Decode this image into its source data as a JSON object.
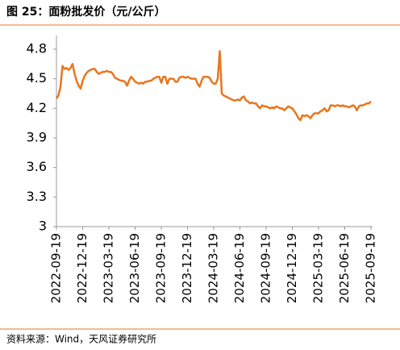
{
  "chart_data": {
    "type": "line",
    "title": "图 25：面粉批发价（元/公斤）",
    "source": "资料来源：Wind，天风证券研究所",
    "categories": [
      "2022-09-19",
      null,
      null,
      null,
      null,
      null,
      null,
      null,
      null,
      null,
      null,
      null,
      null,
      "2022-12-19",
      null,
      null,
      null,
      null,
      null,
      null,
      null,
      null,
      null,
      null,
      null,
      null,
      "2023-03-19",
      null,
      null,
      null,
      null,
      null,
      null,
      null,
      null,
      null,
      null,
      null,
      null,
      "2023-06-19",
      null,
      null,
      null,
      null,
      null,
      null,
      null,
      null,
      null,
      null,
      null,
      null,
      "2023-09-19",
      null,
      null,
      null,
      null,
      null,
      null,
      null,
      null,
      null,
      null,
      null,
      null,
      "2023-12-19",
      null,
      null,
      null,
      null,
      null,
      null,
      null,
      null,
      null,
      null,
      null,
      null,
      "2024-03-19",
      null,
      null,
      null,
      null,
      null,
      null,
      null,
      null,
      null,
      null,
      null,
      null,
      "2024-06-19",
      null,
      null,
      null,
      null,
      null,
      null,
      null,
      null,
      null,
      null,
      null,
      null,
      "2024-09-19",
      null,
      null,
      null,
      null,
      null,
      null,
      null,
      null,
      null,
      null,
      null,
      null,
      "2024-12-19",
      null,
      null,
      null,
      null,
      null,
      null,
      null,
      null,
      null,
      null,
      null,
      null,
      "2025-03-19",
      null,
      null,
      null,
      null,
      null,
      null,
      null,
      null,
      null,
      null,
      null,
      null,
      "2025-06-19",
      null,
      null,
      null,
      null,
      null,
      null,
      null,
      null,
      null,
      null,
      null,
      null,
      "2025-09-19"
    ],
    "values": [
      4.3,
      4.33,
      4.42,
      4.63,
      4.6,
      4.61,
      4.59,
      4.61,
      4.65,
      4.55,
      4.48,
      4.43,
      4.4,
      4.48,
      4.53,
      4.56,
      4.58,
      4.59,
      4.6,
      4.6,
      4.57,
      4.55,
      4.56,
      4.57,
      4.57,
      4.58,
      4.57,
      4.57,
      4.55,
      4.51,
      4.5,
      4.49,
      4.48,
      4.48,
      4.47,
      4.43,
      4.48,
      4.52,
      4.5,
      4.47,
      4.46,
      4.45,
      4.46,
      4.45,
      4.47,
      4.47,
      4.48,
      4.48,
      4.5,
      4.51,
      4.52,
      4.52,
      4.46,
      4.52,
      4.52,
      4.45,
      4.5,
      4.5,
      4.5,
      4.47,
      4.47,
      4.51,
      4.52,
      4.52,
      4.51,
      4.52,
      4.51,
      4.5,
      4.5,
      4.5,
      4.45,
      4.42,
      4.48,
      4.52,
      4.52,
      4.52,
      4.51,
      4.47,
      4.45,
      4.45,
      4.5,
      4.78,
      4.35,
      4.33,
      4.32,
      4.31,
      4.3,
      4.29,
      4.28,
      4.28,
      4.29,
      4.28,
      4.31,
      4.32,
      4.28,
      4.27,
      4.25,
      4.26,
      4.25,
      4.25,
      4.22,
      4.2,
      4.23,
      4.22,
      4.22,
      4.21,
      4.2,
      4.21,
      4.2,
      4.22,
      4.21,
      4.2,
      4.2,
      4.18,
      4.2,
      4.22,
      4.21,
      4.2,
      4.17,
      4.14,
      4.1,
      4.08,
      4.13,
      4.12,
      4.13,
      4.12,
      4.1,
      4.13,
      4.15,
      4.15,
      4.15,
      4.17,
      4.18,
      4.2,
      4.17,
      4.18,
      4.23,
      4.23,
      4.22,
      4.23,
      4.23,
      4.22,
      4.23,
      4.22,
      4.22,
      4.21,
      4.22,
      4.23,
      4.22,
      4.18,
      4.22,
      4.23,
      4.23,
      4.24,
      4.25,
      4.25,
      4.27
    ],
    "color": "#e8761e",
    "ylim": [
      3,
      4.8
    ],
    "yticks": [
      3,
      3.3,
      3.6,
      3.9,
      4.2,
      4.5,
      4.8
    ],
    "grid": false
  }
}
